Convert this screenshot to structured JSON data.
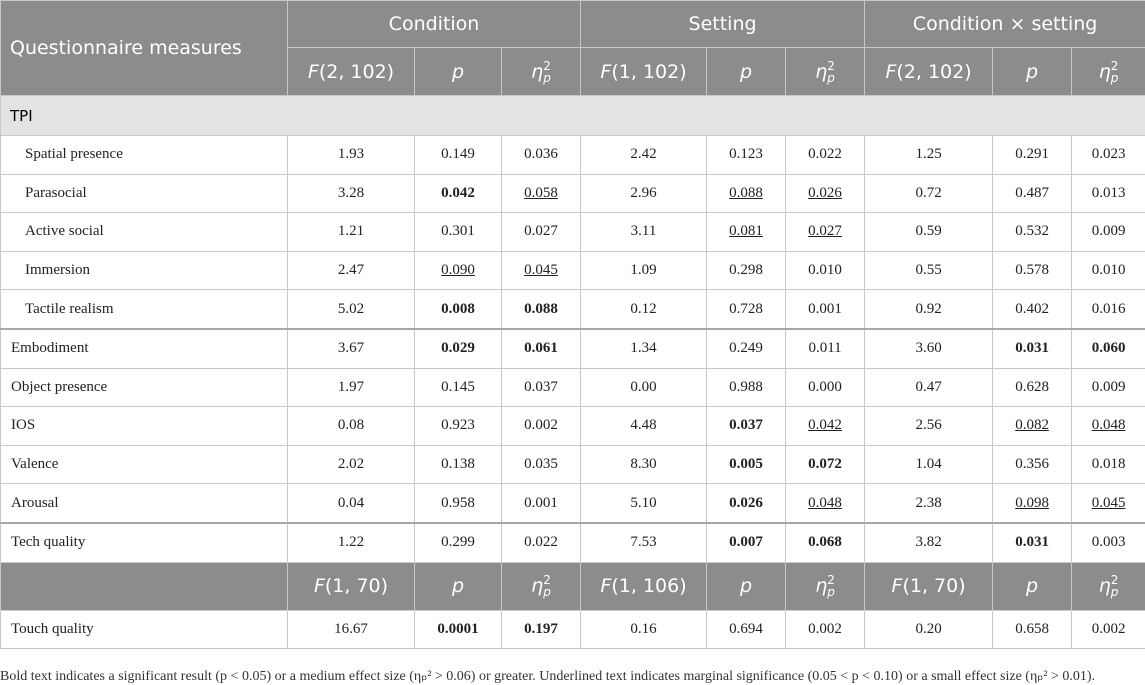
{
  "table": {
    "header": [
      "Questionnaire measures",
      "Condition",
      "Setting",
      "Condition × setting"
    ],
    "subheader": [
      {
        "italic": "F",
        "text": "(2, 102)"
      },
      {
        "italic": "p"
      },
      {
        "italic": "η",
        "sub": "p",
        "sup": "2"
      },
      {
        "italic": "F",
        "text": "(1, 102)"
      },
      {
        "italic": "p"
      },
      {
        "italic": "η",
        "sub": "p",
        "sup": "2"
      },
      {
        "italic": "F",
        "text": "(2, 102)"
      },
      {
        "italic": "p"
      },
      {
        "italic": "η",
        "sub": "p",
        "sup": "2"
      }
    ],
    "section_label": "TPI",
    "groups": [
      [
        {
          "label": "Spatial presence",
          "cells": [
            "1.93",
            "0.149",
            "0.036",
            "2.42",
            "0.123",
            "0.022",
            "1.25",
            "0.291",
            "0.023"
          ]
        },
        {
          "label": "Parasocial",
          "cells": [
            "3.28",
            {
              "text": "0.042",
              "style": "bold"
            },
            {
              "text": "0.058",
              "style": "underline"
            },
            "2.96",
            {
              "text": "0.088",
              "style": "underline"
            },
            {
              "text": "0.026",
              "style": "underline"
            },
            "0.72",
            "0.487",
            "0.013"
          ]
        },
        {
          "label": "Active social",
          "cells": [
            "1.21",
            "0.301",
            "0.027",
            "3.11",
            {
              "text": "0.081",
              "style": "underline"
            },
            {
              "text": "0.027",
              "style": "underline"
            },
            "0.59",
            "0.532",
            "0.009"
          ]
        },
        {
          "label": "Immersion",
          "cells": [
            "2.47",
            {
              "text": "0.090",
              "style": "underline"
            },
            {
              "text": "0.045",
              "style": "underline"
            },
            "1.09",
            "0.298",
            "0.010",
            "0.55",
            "0.578",
            "0.010"
          ]
        },
        {
          "label": "Tactile realism",
          "cells": [
            "5.02",
            {
              "text": "0.008",
              "style": "bold"
            },
            {
              "text": "0.088",
              "style": "bold"
            },
            "0.12",
            "0.728",
            "0.001",
            "0.92",
            "0.402",
            "0.016"
          ]
        }
      ],
      [
        {
          "label": "Embodiment",
          "cells": [
            "3.67",
            {
              "text": "0.029",
              "style": "bold"
            },
            {
              "text": "0.061",
              "style": "bold"
            },
            "1.34",
            "0.249",
            "0.011",
            "3.60",
            {
              "text": "0.031",
              "style": "bold"
            },
            {
              "text": "0.060",
              "style": "bold"
            }
          ]
        },
        {
          "label": "Object presence",
          "cells": [
            "1.97",
            "0.145",
            "0.037",
            "0.00",
            "0.988",
            "0.000",
            "0.47",
            "0.628",
            "0.009"
          ]
        },
        {
          "label": "IOS",
          "cells": [
            "0.08",
            "0.923",
            "0.002",
            "4.48",
            {
              "text": "0.037",
              "style": "bold"
            },
            {
              "text": "0.042",
              "style": "underline"
            },
            "2.56",
            {
              "text": "0.082",
              "style": "underline"
            },
            {
              "text": "0.048",
              "style": "underline"
            }
          ]
        },
        {
          "label": "Valence",
          "cells": [
            "2.02",
            "0.138",
            "0.035",
            "8.30",
            {
              "text": "0.005",
              "style": "bold"
            },
            {
              "text": "0.072",
              "style": "bold"
            },
            "1.04",
            "0.356",
            "0.018"
          ]
        },
        {
          "label": "Arousal",
          "cells": [
            "0.04",
            "0.958",
            "0.001",
            "5.10",
            {
              "text": "0.026",
              "style": "bold"
            },
            {
              "text": "0.048",
              "style": "underline"
            },
            "2.38",
            {
              "text": "0.098",
              "style": "underline"
            },
            {
              "text": "0.045",
              "style": "underline"
            }
          ]
        }
      ],
      [
        {
          "label": "Tech quality",
          "cells": [
            "1.22",
            "0.299",
            "0.022",
            "7.53",
            {
              "text": "0.007",
              "style": "bold"
            },
            {
              "text": "0.068",
              "style": "bold"
            },
            "3.82",
            {
              "text": "0.031",
              "style": "bold"
            },
            "0.003"
          ]
        }
      ]
    ],
    "subheader2": [
      {
        "italic": "F",
        "text": "(1, 70)"
      },
      {
        "italic": "p"
      },
      {
        "italic": "η",
        "sub": "p",
        "sup": "2"
      },
      {
        "italic": "F",
        "text": "(1, 106)"
      },
      {
        "italic": "p"
      },
      {
        "italic": "η",
        "sub": "p",
        "sup": "2"
      },
      {
        "italic": "F",
        "text": "(1, 70)"
      },
      {
        "italic": "p"
      },
      {
        "italic": "η",
        "sub": "p",
        "sup": "2"
      }
    ],
    "final_rows": [
      {
        "label": "Touch quality",
        "cells": [
          "16.67",
          {
            "text": "0.0001",
            "style": "bold"
          },
          {
            "text": "0.197",
            "style": "bold"
          },
          "0.16",
          "0.694",
          "0.002",
          "0.20",
          "0.658",
          "0.002"
        ]
      }
    ]
  },
  "footnote": "Bold text indicates a significant result (p < 0.05) or a medium effect size (ηₚ² > 0.06) or greater. Underlined text indicates marginal significance (0.05 < p < 0.10) or a small effect size (ηₚ² > 0.01)."
}
